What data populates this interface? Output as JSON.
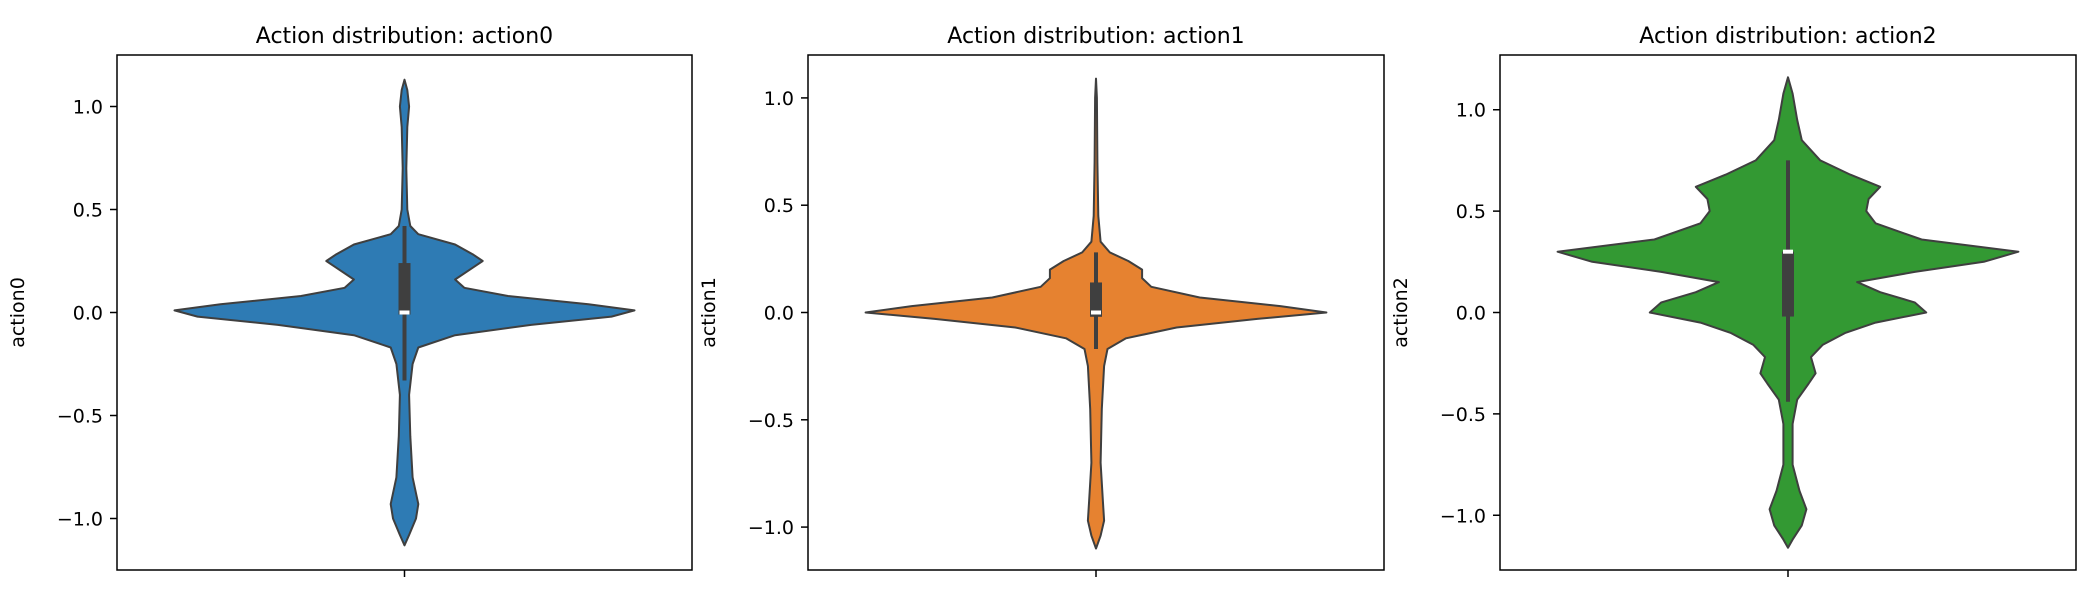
{
  "chart_data": [
    {
      "type": "violin",
      "title": "Action distribution: action0",
      "xlabel": "",
      "ylabel": "action0",
      "ylim": [
        -1.25,
        1.25
      ],
      "yticks": [
        -1.0,
        -0.5,
        0.0,
        0.5,
        1.0
      ],
      "ytick_labels": [
        "−1.0",
        "−0.5",
        "0.0",
        "0.5",
        "1.0"
      ],
      "color": "#2e7bb4",
      "width_profile": [
        {
          "y": 1.13,
          "w": 0
        },
        {
          "y": 1.08,
          "w": 0.012
        },
        {
          "y": 1.0,
          "w": 0.02
        },
        {
          "y": 0.9,
          "w": 0.012
        },
        {
          "y": 0.7,
          "w": 0.008
        },
        {
          "y": 0.5,
          "w": 0.012
        },
        {
          "y": 0.42,
          "w": 0.025
        },
        {
          "y": 0.38,
          "w": 0.06
        },
        {
          "y": 0.33,
          "w": 0.22
        },
        {
          "y": 0.28,
          "w": 0.3
        },
        {
          "y": 0.25,
          "w": 0.34
        },
        {
          "y": 0.22,
          "w": 0.3
        },
        {
          "y": 0.16,
          "w": 0.22
        },
        {
          "y": 0.12,
          "w": 0.26
        },
        {
          "y": 0.08,
          "w": 0.45
        },
        {
          "y": 0.04,
          "w": 0.8
        },
        {
          "y": 0.01,
          "w": 1.0
        },
        {
          "y": -0.02,
          "w": 0.9
        },
        {
          "y": -0.06,
          "w": 0.55
        },
        {
          "y": -0.11,
          "w": 0.22
        },
        {
          "y": -0.17,
          "w": 0.06
        },
        {
          "y": -0.25,
          "w": 0.035
        },
        {
          "y": -0.4,
          "w": 0.02
        },
        {
          "y": -0.6,
          "w": 0.025
        },
        {
          "y": -0.8,
          "w": 0.035
        },
        {
          "y": -0.93,
          "w": 0.06
        },
        {
          "y": -1.0,
          "w": 0.05
        },
        {
          "y": -1.08,
          "w": 0.02
        },
        {
          "y": -1.13,
          "w": 0
        }
      ],
      "box": {
        "q1": -0.01,
        "median": 0.0,
        "q3": 0.24,
        "whisker_low": -0.33,
        "whisker_high": 0.42
      }
    },
    {
      "type": "violin",
      "title": "Action distribution: action1",
      "xlabel": "",
      "ylabel": "action1",
      "ylim": [
        -1.2,
        1.2
      ],
      "yticks": [
        -1.0,
        -0.5,
        0.0,
        0.5,
        1.0
      ],
      "ytick_labels": [
        "−1.0",
        "−0.5",
        "0.0",
        "0.5",
        "1.0"
      ],
      "color": "#e68230",
      "width_profile": [
        {
          "y": 1.09,
          "w": 0
        },
        {
          "y": 1.0,
          "w": 0.004
        },
        {
          "y": 0.7,
          "w": 0.006
        },
        {
          "y": 0.45,
          "w": 0.01
        },
        {
          "y": 0.33,
          "w": 0.02
        },
        {
          "y": 0.28,
          "w": 0.06
        },
        {
          "y": 0.24,
          "w": 0.14
        },
        {
          "y": 0.2,
          "w": 0.2
        },
        {
          "y": 0.16,
          "w": 0.2
        },
        {
          "y": 0.12,
          "w": 0.24
        },
        {
          "y": 0.07,
          "w": 0.45
        },
        {
          "y": 0.03,
          "w": 0.8
        },
        {
          "y": 0.0,
          "w": 1.0
        },
        {
          "y": -0.03,
          "w": 0.7
        },
        {
          "y": -0.07,
          "w": 0.35
        },
        {
          "y": -0.12,
          "w": 0.13
        },
        {
          "y": -0.17,
          "w": 0.05
        },
        {
          "y": -0.25,
          "w": 0.035
        },
        {
          "y": -0.45,
          "w": 0.025
        },
        {
          "y": -0.7,
          "w": 0.02
        },
        {
          "y": -0.88,
          "w": 0.03
        },
        {
          "y": -0.97,
          "w": 0.035
        },
        {
          "y": -1.04,
          "w": 0.02
        },
        {
          "y": -1.1,
          "w": 0
        }
      ],
      "box": {
        "q1": -0.02,
        "median": 0.0,
        "q3": 0.14,
        "whisker_low": -0.17,
        "whisker_high": 0.28
      }
    },
    {
      "type": "violin",
      "title": "Action distribution: action2",
      "xlabel": "",
      "ylabel": "action2",
      "ylim": [
        -1.27,
        1.27
      ],
      "yticks": [
        -1.0,
        -0.5,
        0.0,
        0.5,
        1.0
      ],
      "ytick_labels": [
        "−1.0",
        "−0.5",
        "0.0",
        "0.5",
        "1.0"
      ],
      "color": "#339933",
      "width_profile": [
        {
          "y": 1.16,
          "w": 0
        },
        {
          "y": 1.08,
          "w": 0.02
        },
        {
          "y": 0.95,
          "w": 0.04
        },
        {
          "y": 0.85,
          "w": 0.06
        },
        {
          "y": 0.75,
          "w": 0.14
        },
        {
          "y": 0.68,
          "w": 0.27
        },
        {
          "y": 0.62,
          "w": 0.4
        },
        {
          "y": 0.56,
          "w": 0.35
        },
        {
          "y": 0.5,
          "w": 0.34
        },
        {
          "y": 0.44,
          "w": 0.38
        },
        {
          "y": 0.36,
          "w": 0.58
        },
        {
          "y": 0.3,
          "w": 1.0
        },
        {
          "y": 0.25,
          "w": 0.85
        },
        {
          "y": 0.2,
          "w": 0.55
        },
        {
          "y": 0.15,
          "w": 0.3
        },
        {
          "y": 0.1,
          "w": 0.4
        },
        {
          "y": 0.05,
          "w": 0.55
        },
        {
          "y": 0.0,
          "w": 0.6
        },
        {
          "y": -0.05,
          "w": 0.38
        },
        {
          "y": -0.1,
          "w": 0.25
        },
        {
          "y": -0.16,
          "w": 0.15
        },
        {
          "y": -0.22,
          "w": 0.1
        },
        {
          "y": -0.3,
          "w": 0.12
        },
        {
          "y": -0.35,
          "w": 0.09
        },
        {
          "y": -0.43,
          "w": 0.04
        },
        {
          "y": -0.55,
          "w": 0.02
        },
        {
          "y": -0.75,
          "w": 0.02
        },
        {
          "y": -0.88,
          "w": 0.05
        },
        {
          "y": -0.97,
          "w": 0.08
        },
        {
          "y": -1.05,
          "w": 0.06
        },
        {
          "y": -1.12,
          "w": 0.02
        },
        {
          "y": -1.16,
          "w": 0
        }
      ],
      "box": {
        "q1": -0.02,
        "median": 0.3,
        "q3": 0.3,
        "whisker_low": -0.44,
        "whisker_high": 0.75
      }
    }
  ]
}
